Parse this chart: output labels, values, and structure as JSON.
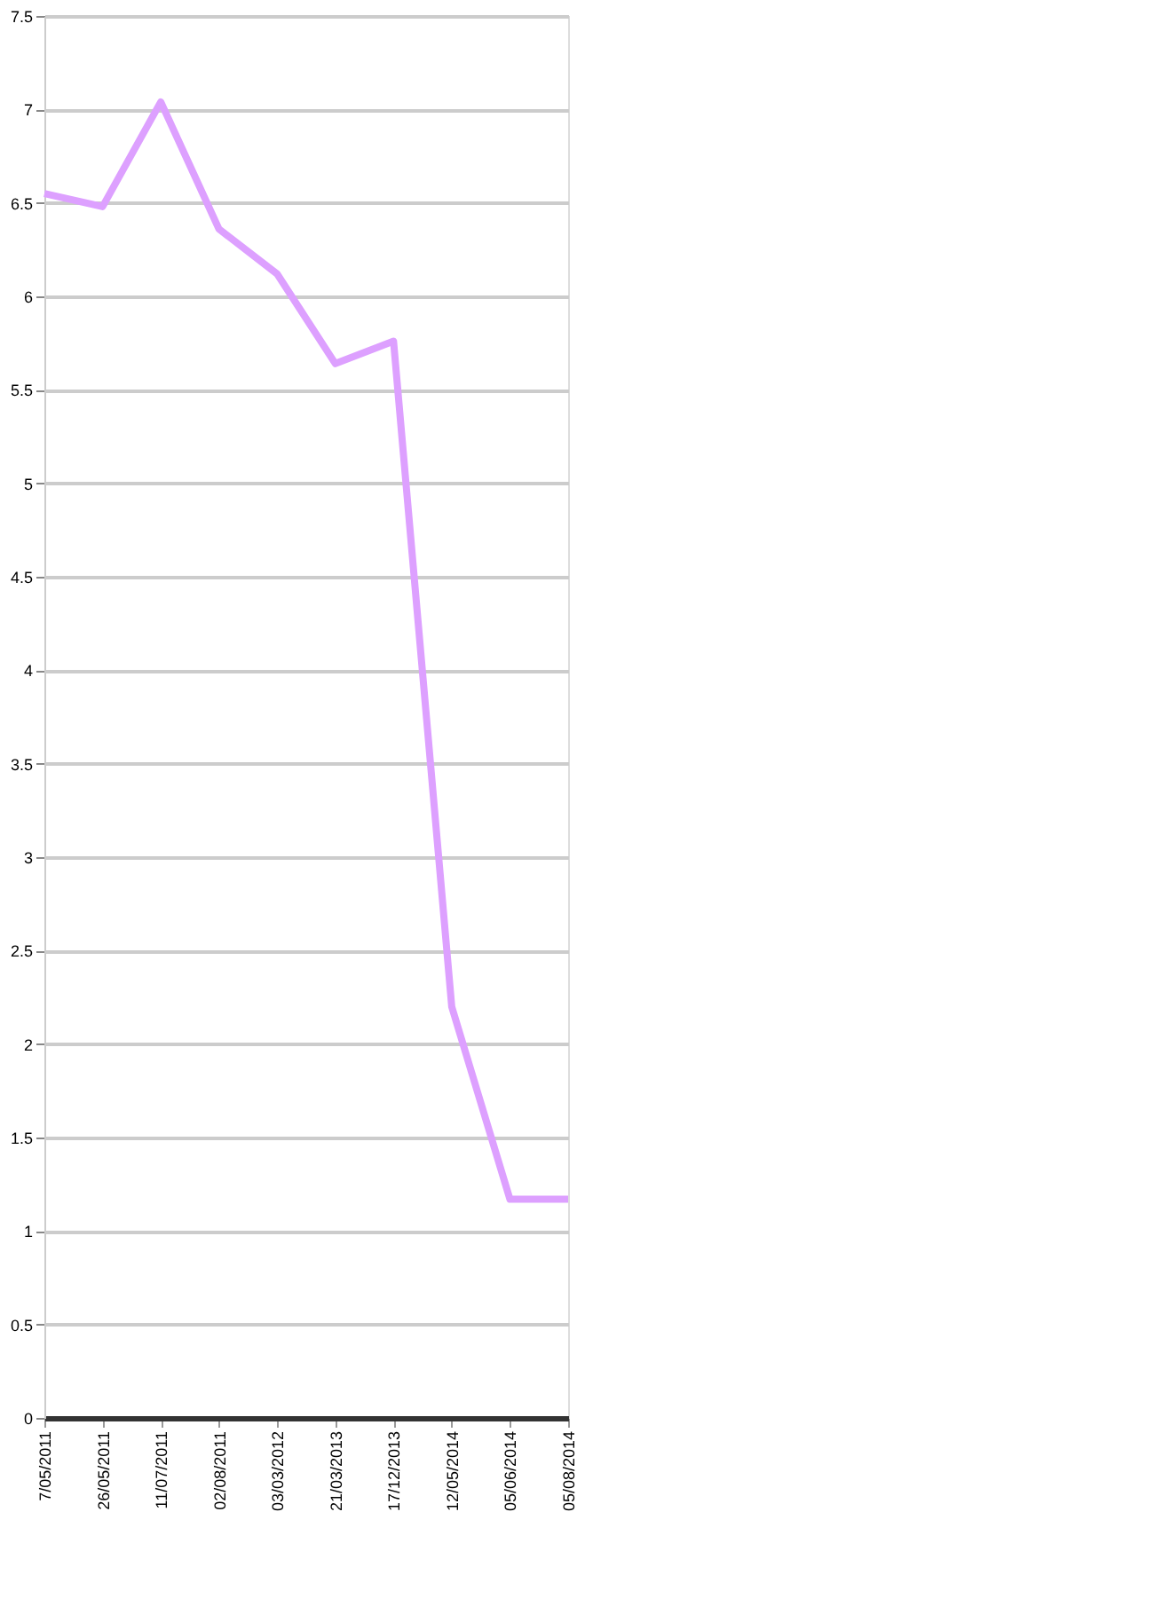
{
  "chart_data": {
    "type": "line",
    "categories": [
      "7/05/2011",
      "26/05/2011",
      "11/07/2011",
      "02/08/2011",
      "03/03/2012",
      "21/03/2013",
      "17/12/2013",
      "12/05/2014",
      "05/06/2014",
      "05/08/2014"
    ],
    "series": [
      {
        "color": "#dda0ff",
        "values": [
          6.55,
          6.48,
          7.04,
          6.36,
          6.12,
          5.64,
          5.76,
          2.2,
          1.17,
          1.17
        ]
      }
    ],
    "ylim": [
      0,
      7.5
    ],
    "yticks": [
      0,
      0.5,
      1,
      1.5,
      2,
      2.5,
      3,
      3.5,
      4,
      4.5,
      5,
      5.5,
      6,
      6.5,
      7,
      7.5
    ],
    "grid": "y",
    "marker": "none",
    "line_style": "solid"
  }
}
